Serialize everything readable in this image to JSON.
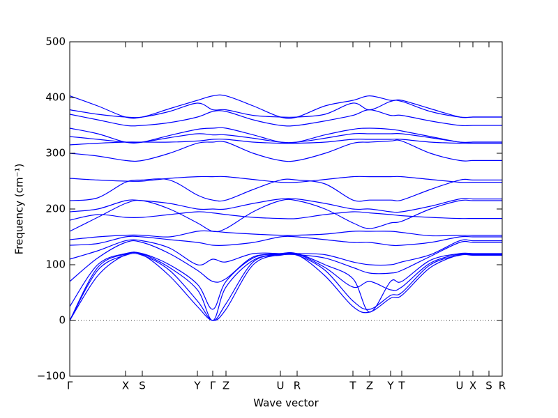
{
  "chart_data": {
    "type": "line",
    "xlabel": "Wave vector",
    "ylabel": "Frequency (cm⁻¹)",
    "color": "#0000ff",
    "xlim": [
      0,
      6.2
    ],
    "ylim": [
      -100,
      500
    ],
    "yticks": [
      {
        "value": -100,
        "label": "−100"
      },
      0,
      100,
      200,
      300,
      400,
      500
    ],
    "xticks": [
      {
        "value": 0,
        "label": "Γ"
      },
      {
        "value": 0.8,
        "label": "X"
      },
      {
        "value": 1.04,
        "label": "S"
      },
      {
        "value": 1.83,
        "label": "Y"
      },
      {
        "value": 2.05,
        "label": "Γ"
      },
      {
        "value": 2.24,
        "label": "Z"
      },
      {
        "value": 3.02,
        "label": "U"
      },
      {
        "value": 3.26,
        "label": "R"
      },
      {
        "value": 4.06,
        "label": "T"
      },
      {
        "value": 4.3,
        "label": "Z"
      },
      {
        "value": 4.6,
        "label": "Y"
      },
      {
        "value": 4.76,
        "label": "T"
      },
      {
        "value": 5.59,
        "label": "U"
      },
      {
        "value": 5.78,
        "label": "X"
      },
      {
        "value": 6.01,
        "label": "S"
      },
      {
        "value": 6.2,
        "label": "R"
      }
    ],
    "reference_line": 0,
    "x": [
      0,
      0.4,
      0.8,
      1.04,
      1.43,
      1.83,
      2.05,
      2.24,
      2.63,
      3.02,
      3.26,
      3.66,
      4.06,
      4.3,
      4.6,
      4.76,
      5.17,
      5.59,
      5.78,
      6.01,
      6.2
    ],
    "series": [
      {
        "values": [
          0,
          80,
          118,
          118,
          80,
          25,
          0,
          20,
          100,
          118,
          118,
          80,
          25,
          15,
          40,
          45,
          95,
          118,
          118,
          118,
          118
        ]
      },
      {
        "values": [
          0,
          90,
          117,
          117,
          90,
          35,
          0,
          30,
          105,
          117,
          117,
          90,
          35,
          20,
          45,
          50,
          100,
          117,
          117,
          117,
          117
        ]
      },
      {
        "values": [
          0,
          95,
          119,
          119,
          95,
          55,
          0,
          60,
          108,
          119,
          119,
          95,
          60,
          70,
          55,
          60,
          103,
          119,
          119,
          119,
          119
        ]
      },
      {
        "values": [
          25,
          100,
          120,
          120,
          100,
          65,
          20,
          70,
          112,
          120,
          120,
          100,
          75,
          15,
          70,
          70,
          108,
          120,
          120,
          120,
          120
        ]
      },
      {
        "values": [
          70,
          112,
          140,
          140,
          120,
          90,
          70,
          75,
          114,
          118,
          118,
          112,
          95,
          85,
          85,
          90,
          115,
          140,
          140,
          140,
          140
        ]
      },
      {
        "values": [
          110,
          125,
          143,
          143,
          130,
          100,
          110,
          105,
          120,
          120,
          120,
          118,
          105,
          100,
          100,
          105,
          118,
          143,
          143,
          143,
          143
        ]
      },
      {
        "values": [
          135,
          138,
          150,
          150,
          145,
          140,
          135,
          135,
          140,
          150,
          150,
          145,
          140,
          140,
          135,
          135,
          140,
          150,
          150,
          150,
          150
        ]
      },
      {
        "values": [
          145,
          150,
          153,
          153,
          150,
          160,
          160,
          158,
          155,
          153,
          153,
          155,
          160,
          160,
          160,
          158,
          152,
          153,
          153,
          153,
          153
        ]
      },
      {
        "values": [
          160,
          185,
          210,
          215,
          200,
          175,
          160,
          165,
          195,
          215,
          215,
          200,
          175,
          165,
          175,
          178,
          200,
          215,
          215,
          215,
          215
        ]
      },
      {
        "values": [
          180,
          190,
          185,
          185,
          190,
          195,
          193,
          190,
          185,
          183,
          183,
          190,
          195,
          193,
          190,
          188,
          185,
          183,
          183,
          183,
          183
        ]
      },
      {
        "values": [
          195,
          200,
          215,
          215,
          210,
          200,
          200,
          200,
          210,
          218,
          218,
          210,
          200,
          200,
          195,
          195,
          205,
          218,
          218,
          218,
          218
        ]
      },
      {
        "values": [
          215,
          220,
          248,
          252,
          252,
          225,
          216,
          216,
          235,
          252,
          252,
          245,
          216,
          216,
          216,
          216,
          235,
          252,
          252,
          252,
          252
        ]
      },
      {
        "values": [
          255,
          252,
          250,
          250,
          255,
          258,
          258,
          258,
          253,
          248,
          248,
          253,
          258,
          258,
          258,
          258,
          253,
          248,
          248,
          248,
          248
        ]
      },
      {
        "values": [
          300,
          295,
          287,
          287,
          300,
          318,
          320,
          320,
          300,
          287,
          287,
          300,
          318,
          320,
          322,
          322,
          300,
          287,
          287,
          287,
          287
        ]
      },
      {
        "values": [
          315,
          318,
          320,
          320,
          320,
          322,
          325,
          325,
          320,
          318,
          318,
          320,
          325,
          325,
          325,
          325,
          320,
          318,
          318,
          318,
          318
        ]
      },
      {
        "values": [
          330,
          325,
          320,
          320,
          328,
          335,
          333,
          333,
          327,
          320,
          320,
          327,
          335,
          335,
          335,
          335,
          328,
          320,
          320,
          320,
          320
        ]
      },
      {
        "values": [
          345,
          335,
          320,
          320,
          332,
          343,
          345,
          345,
          333,
          320,
          320,
          333,
          343,
          345,
          343,
          340,
          330,
          320,
          320,
          320,
          320
        ]
      },
      {
        "values": [
          370,
          360,
          350,
          350,
          355,
          365,
          375,
          375,
          360,
          350,
          350,
          358,
          368,
          378,
          368,
          368,
          358,
          350,
          350,
          350,
          350
        ]
      },
      {
        "values": [
          378,
          370,
          365,
          365,
          375,
          390,
          378,
          378,
          368,
          365,
          365,
          370,
          390,
          378,
          393,
          393,
          375,
          365,
          365,
          365,
          365
        ]
      },
      {
        "values": [
          403,
          385,
          365,
          365,
          380,
          395,
          403,
          403,
          385,
          365,
          365,
          385,
          395,
          403,
          395,
          395,
          380,
          365,
          365,
          365,
          365
        ]
      }
    ]
  }
}
